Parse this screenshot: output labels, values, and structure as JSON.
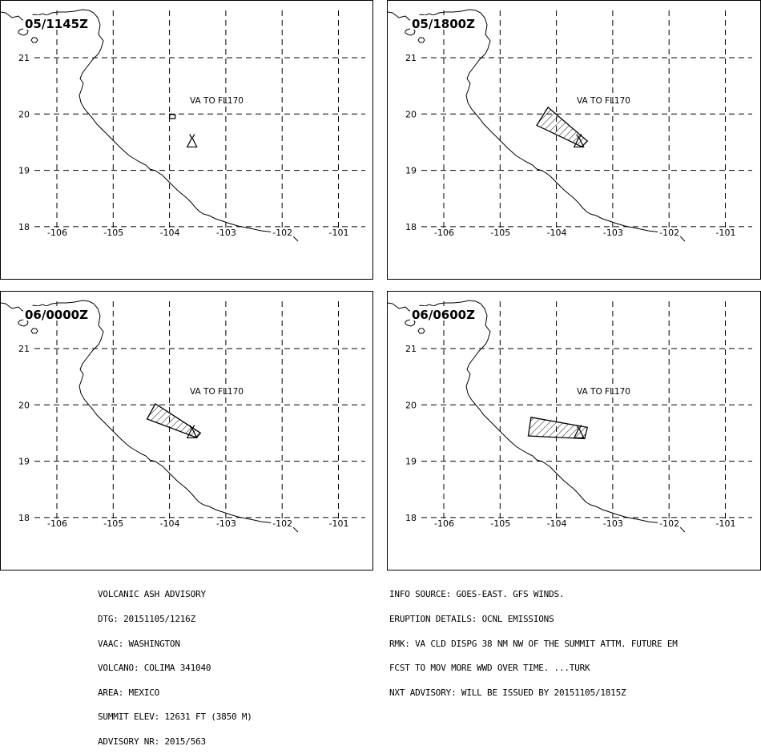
{
  "panels": [
    {
      "time_label": "05/1145Z",
      "va_label": "VA TO FL170",
      "cloud": [
        [
          -104.0,
          19.99
        ],
        [
          -103.9,
          19.99
        ],
        [
          -103.9,
          19.92
        ],
        [
          -104.0,
          19.92
        ]
      ]
    },
    {
      "time_label": "05/1800Z",
      "va_label": "VA TO FL170",
      "cloud": [
        [
          -104.15,
          20.12
        ],
        [
          -103.45,
          19.52
        ],
        [
          -103.55,
          19.42
        ],
        [
          -104.35,
          19.8
        ]
      ]
    },
    {
      "time_label": "06/0000Z",
      "va_label": "VA TO FL170",
      "cloud": [
        [
          -104.25,
          20.02
        ],
        [
          -103.45,
          19.5
        ],
        [
          -103.52,
          19.42
        ],
        [
          -104.4,
          19.75
        ]
      ]
    },
    {
      "time_label": "06/0600Z",
      "va_label": "VA TO FL170",
      "cloud": [
        [
          -104.45,
          19.78
        ],
        [
          -103.45,
          19.6
        ],
        [
          -103.5,
          19.4
        ],
        [
          -104.5,
          19.45
        ]
      ]
    }
  ],
  "volcano": {
    "lon": -103.6,
    "lat": 19.5
  },
  "axes": {
    "lon_ticks": [
      -106,
      -105,
      -104,
      -103,
      -102,
      -101
    ],
    "lat_ticks": [
      18,
      19,
      20,
      21
    ]
  },
  "advisory_left": [
    "VOLCANIC ASH ADVISORY",
    "DTG: 20151105/1216Z",
    "VAAC: WASHINGTON",
    "VOLCANO: COLIMA 341040",
    "AREA: MEXICO",
    "SUMMIT ELEV: 12631 FT (3850 M)",
    "ADVISORY NR: 2015/563"
  ],
  "advisory_right": [
    "INFO SOURCE: GOES-EAST. GFS WINDS.",
    "ERUPTION DETAILS: OCNL EMISSIONS",
    "RMK: VA CLD DISPG 38 NM NW OF THE SUMMIT ATTM. FUTURE EM",
    "FCST TO MOV MORE WWD OVER TIME. ...TURK",
    "NXT ADVISORY: WILL BE ISSUED BY 20151105/1815Z"
  ]
}
